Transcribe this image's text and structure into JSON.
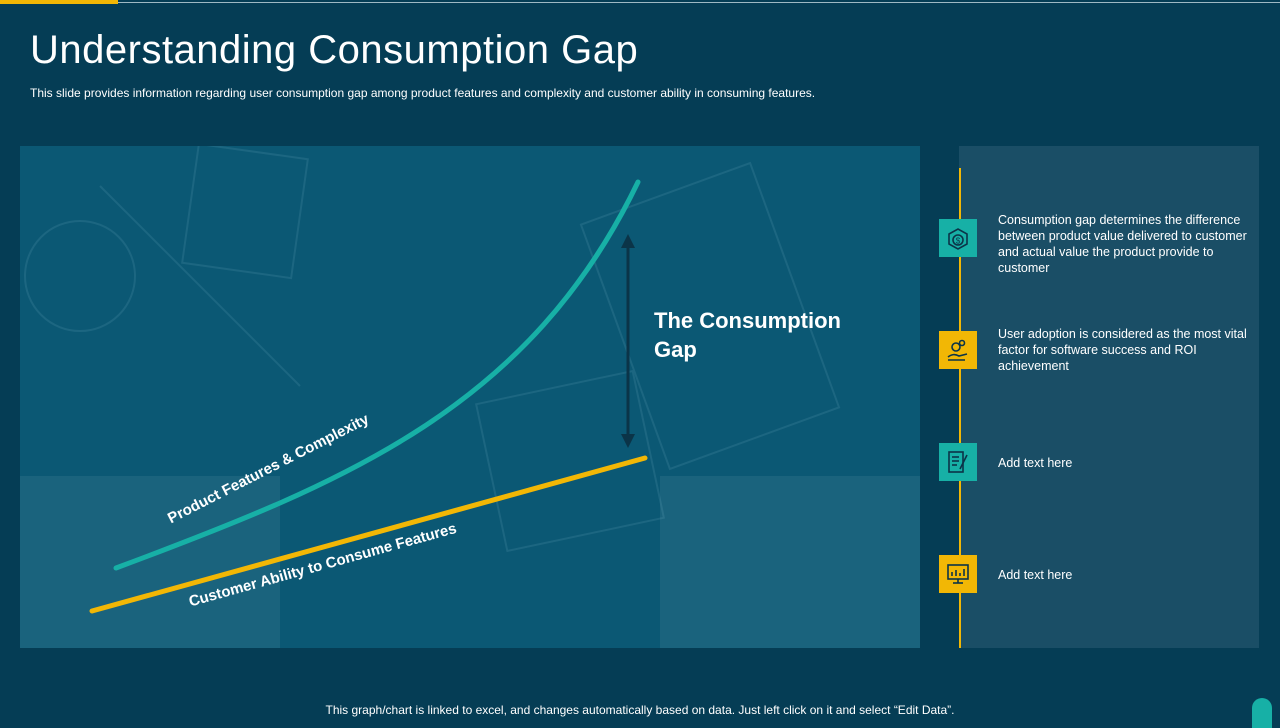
{
  "slide": {
    "title": "Understanding Consumption Gap",
    "subtitle": "This slide provides information regarding user consumption gap among product features and complexity and customer ability in consuming features.",
    "footer": "This graph/chart is linked to excel, and changes automatically based on data. Just left click on it and select “Edit Data”."
  },
  "diagram": {
    "gap_label": "The Consumption Gap",
    "product_curve_label": "Product Features & Complexity",
    "customer_line_label": "Customer Ability to Consume Features",
    "colors": {
      "product_curve": "#17b0a6",
      "customer_line": "#f2b705",
      "gap_arrow": "#0b3448"
    }
  },
  "side_panel": {
    "items": [
      {
        "icon": "money-box-icon",
        "icon_color": "teal",
        "text": "Consumption gap determines the difference between product value delivered to customer and actual value the product provide to customer"
      },
      {
        "icon": "hand-gears-icon",
        "icon_color": "yellow",
        "text": "User adoption is considered as the most vital factor for software success and ROI achievement"
      },
      {
        "icon": "checklist-pen-icon",
        "icon_color": "teal",
        "text": "Add text here"
      },
      {
        "icon": "monitor-chart-icon",
        "icon_color": "yellow",
        "text": "Add text here"
      }
    ]
  }
}
